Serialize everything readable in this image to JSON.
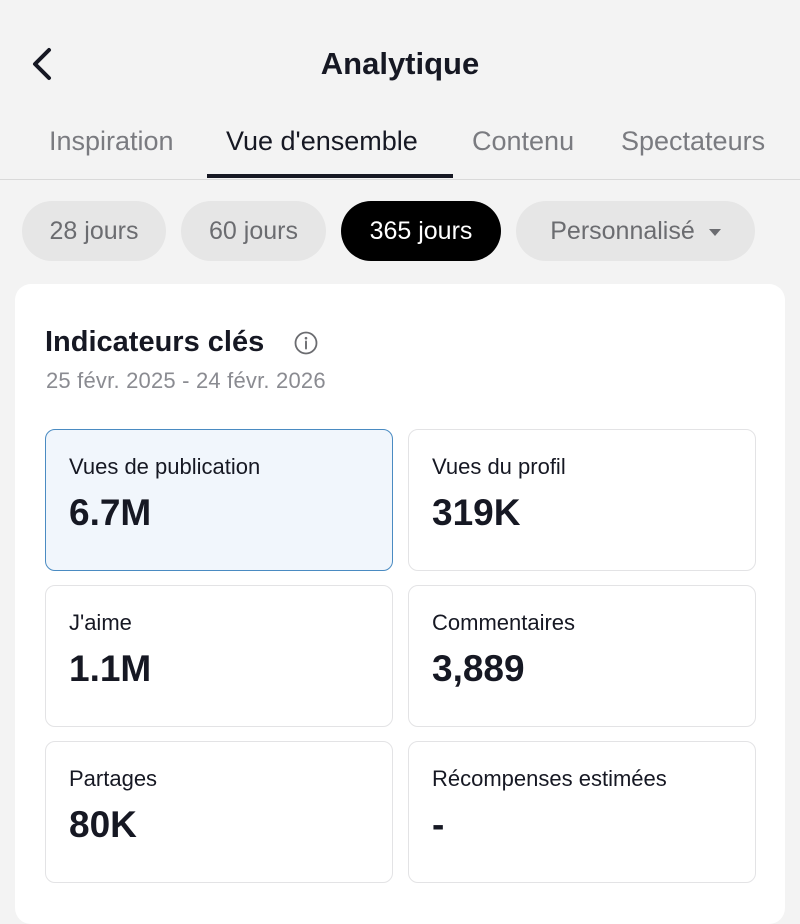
{
  "header": {
    "title": "Analytique",
    "back_icon": "chevron-left-icon"
  },
  "tabs": [
    {
      "label": "Inspiration",
      "active": false
    },
    {
      "label": "Vue d'ensemble",
      "active": true
    },
    {
      "label": "Contenu",
      "active": false
    },
    {
      "label": "Spectateurs",
      "active": false
    }
  ],
  "periods": [
    {
      "label": "28 jours",
      "active": false
    },
    {
      "label": "60 jours",
      "active": false
    },
    {
      "label": "365 jours",
      "active": true
    },
    {
      "label": "Personnalisé",
      "active": false,
      "dropdown": true
    }
  ],
  "key_metrics": {
    "title": "Indicateurs clés",
    "info_icon": "info-icon",
    "date_range": "25 févr. 2025 - 24 févr. 2026",
    "items": [
      {
        "label": "Vues de publication",
        "value": "6.7M",
        "selected": true
      },
      {
        "label": "Vues du profil",
        "value": "319K",
        "selected": false
      },
      {
        "label": "J'aime",
        "value": "1.1M",
        "selected": false
      },
      {
        "label": "Commentaires",
        "value": "3,889",
        "selected": false
      },
      {
        "label": "Partages",
        "value": "80K",
        "selected": false
      },
      {
        "label": "Récompenses estimées",
        "value": "-",
        "selected": false
      }
    ]
  },
  "colors": {
    "page_bg": "#f3f3f3",
    "text_primary": "#161823",
    "selected_card_bg": "#f1f6fc",
    "selected_card_border": "#4a8bc2",
    "active_pill_bg": "#000000"
  }
}
